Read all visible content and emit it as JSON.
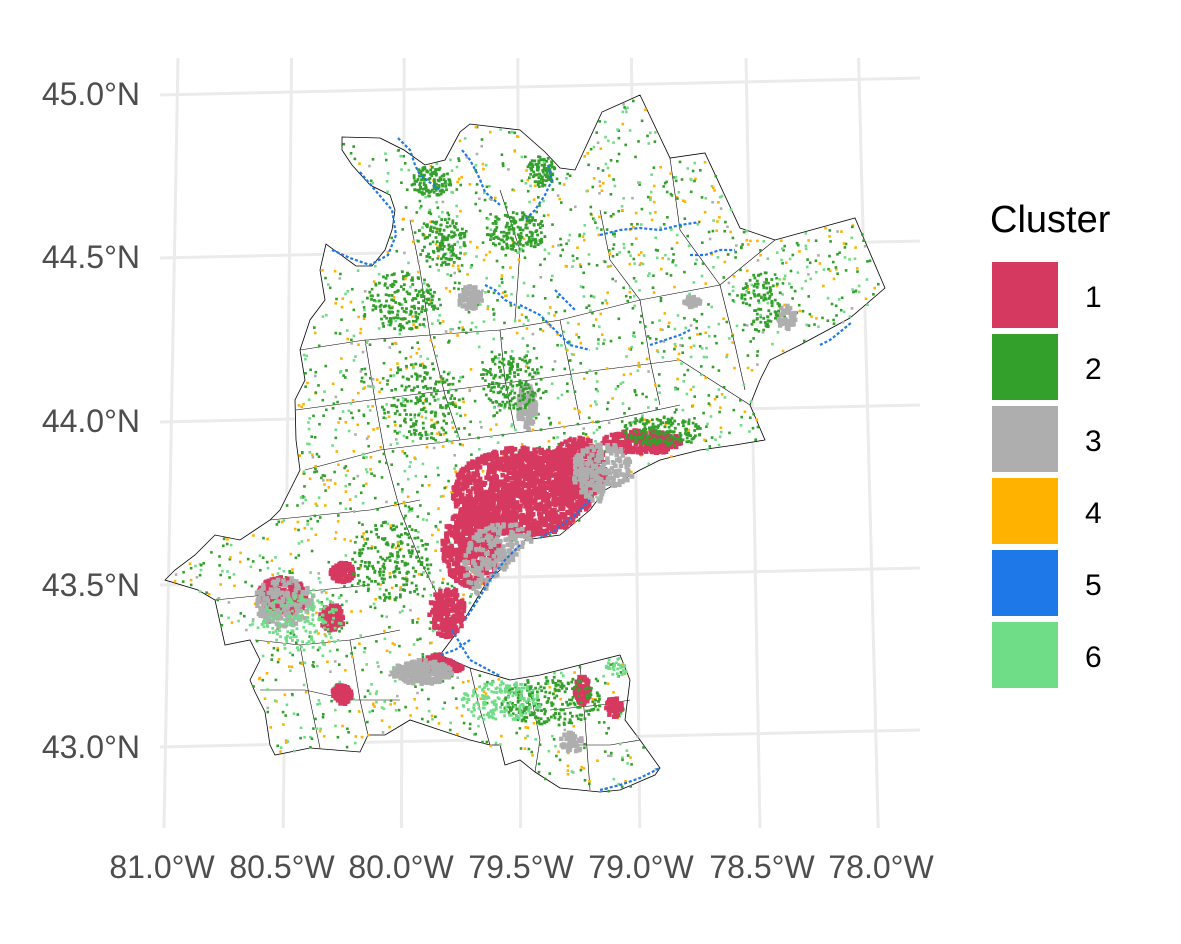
{
  "map": {
    "lat_ticks": [
      "45.0°N",
      "44.5°N",
      "44.0°N",
      "43.5°N",
      "43.0°N"
    ],
    "lon_ticks": [
      "81.0°W",
      "80.5°W",
      "80.0°W",
      "79.5°W",
      "79.0°W",
      "78.5°W",
      "78.0°W"
    ],
    "grid_color": "#ebebeb",
    "boundary_color": "#000000"
  },
  "legend": {
    "title": "Cluster",
    "items": [
      {
        "label": "1",
        "color": "#d6395f"
      },
      {
        "label": "2",
        "color": "#33a02c"
      },
      {
        "label": "3",
        "color": "#aeaeae"
      },
      {
        "label": "4",
        "color": "#ffb300"
      },
      {
        "label": "5",
        "color": "#1f78e8"
      },
      {
        "label": "6",
        "color": "#6fdc87"
      }
    ]
  }
}
